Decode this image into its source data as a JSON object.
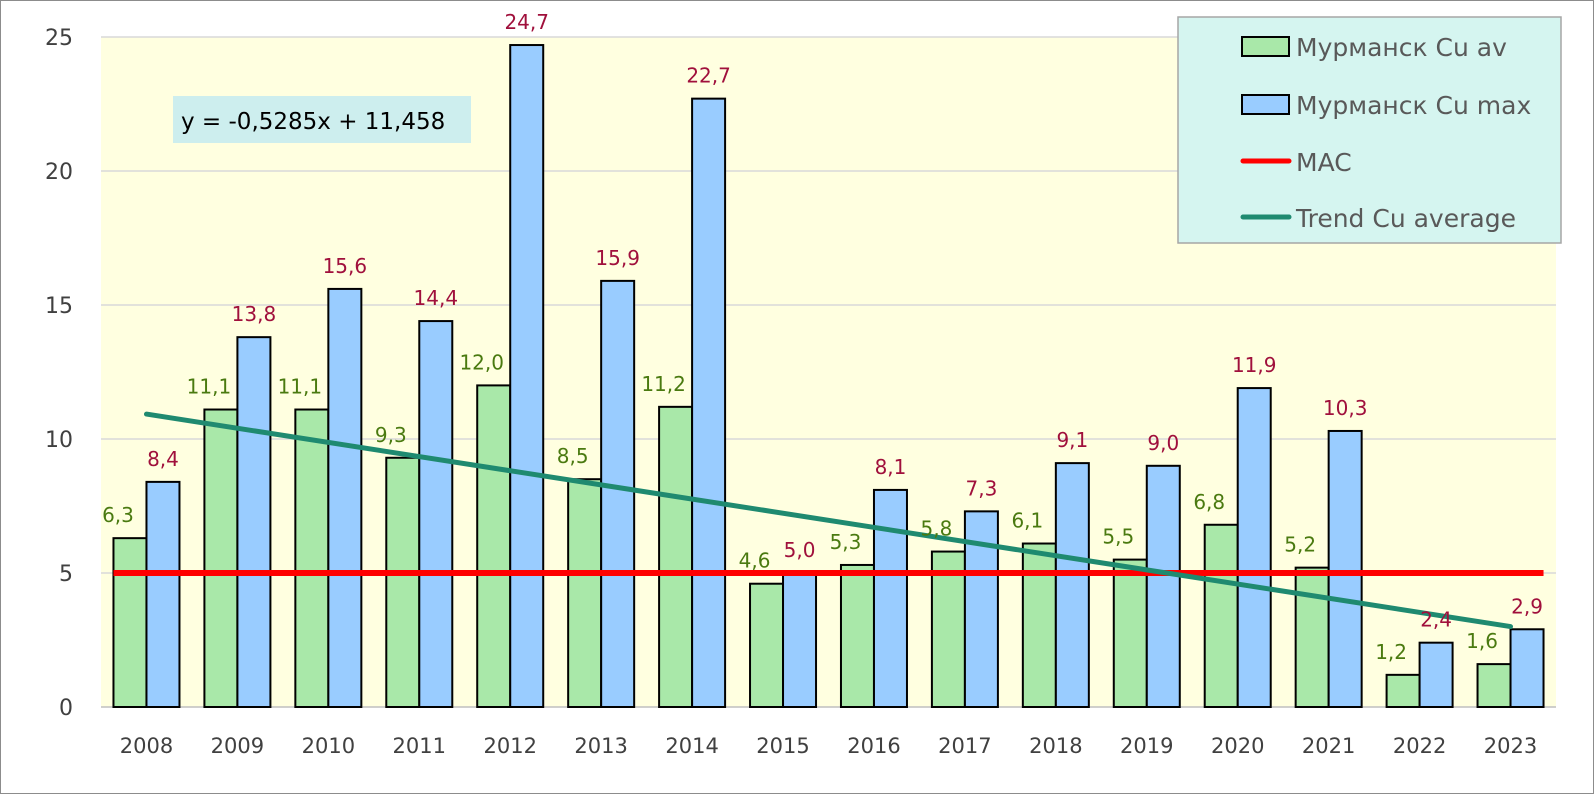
{
  "chart_data": {
    "type": "bar",
    "categories": [
      "2008",
      "2009",
      "2010",
      "2011",
      "2012",
      "2013",
      "2014",
      "2015",
      "2016",
      "2017",
      "2018",
      "2019",
      "2020",
      "2021",
      "2022",
      "2023"
    ],
    "series": [
      {
        "name": "Мурманск Cu av",
        "color": "#a9e8a9",
        "label_color": "#4a7a10",
        "values": [
          6.3,
          11.1,
          11.1,
          9.3,
          12.0,
          8.5,
          11.2,
          4.6,
          5.3,
          5.8,
          6.1,
          5.5,
          6.8,
          5.2,
          1.2,
          1.6
        ],
        "labels": [
          "6,3",
          "11,1",
          "11,1",
          "9,3",
          "12,0",
          "8,5",
          "11,2",
          "4,6",
          "5,3",
          "5,8",
          "6,1",
          "5,5",
          "6,8",
          "5,2",
          "1,2",
          "1,6"
        ]
      },
      {
        "name": "Мурманск Cu max",
        "color": "#99ccff",
        "label_color": "#a0103c",
        "values": [
          8.4,
          13.8,
          15.6,
          14.4,
          24.7,
          15.9,
          22.7,
          5.0,
          8.1,
          7.3,
          9.1,
          9.0,
          11.9,
          10.3,
          2.4,
          2.9
        ],
        "labels": [
          "8,4",
          "13,8",
          "15,6",
          "14,4",
          "24,7",
          "15,9",
          "22,7",
          "5,0",
          "8,1",
          "7,3",
          "9,1",
          "9,0",
          "11,9",
          "10,3",
          "2,4",
          "2,9"
        ]
      }
    ],
    "lines": [
      {
        "name": "MAC",
        "color": "#ff0000",
        "value": 5
      },
      {
        "name": "Trend Cu average",
        "color": "#1f8a70",
        "slope": -0.5285,
        "intercept": 11.458
      }
    ],
    "equation": "y = -0,5285x + 11,458",
    "ylim": [
      0,
      25
    ],
    "yticks": [
      "0",
      "5",
      "10",
      "15",
      "20",
      "25"
    ],
    "grid": true,
    "legend_position": "top-right"
  }
}
